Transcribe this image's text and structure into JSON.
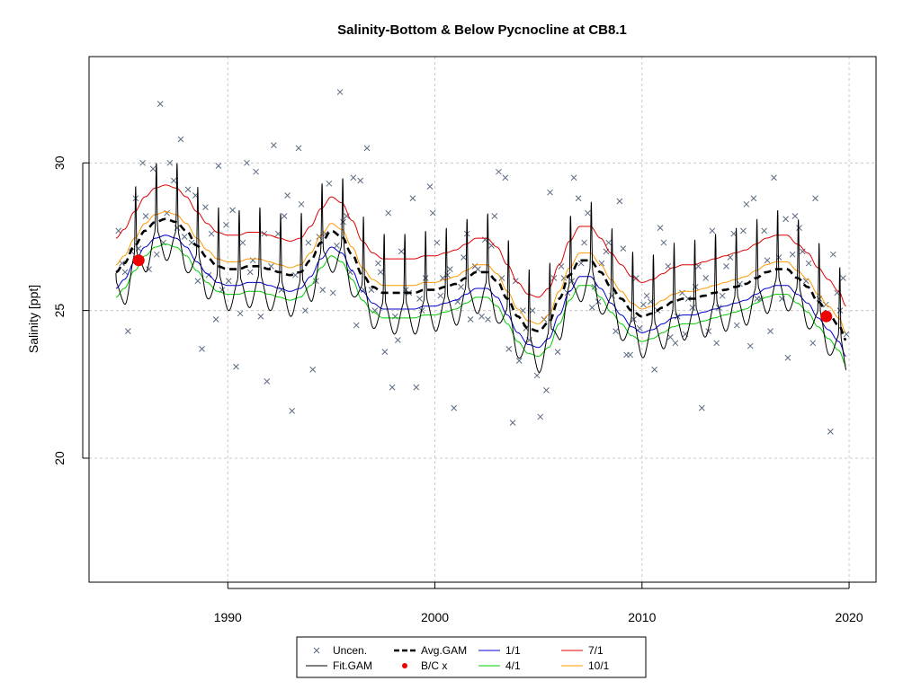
{
  "chart_data": {
    "type": "scatter",
    "title": "Salinity-Bottom & Below Pycnocline at CB8.1",
    "xlabel": "",
    "ylabel": "Salinity [ppt]",
    "xlim": [
      1983.3,
      2021.3
    ],
    "ylim": [
      15.8,
      33.6
    ],
    "x_ticks": [
      1990,
      2000,
      2010,
      2020
    ],
    "y_ticks": [
      20,
      25,
      30
    ],
    "grid": true,
    "legend_position": "bottom",
    "colors": {
      "points": "#5a6a80",
      "fit": "#000000",
      "avg": "#000000",
      "jan": "#0000cc",
      "apr": "#00cc00",
      "jul": "#dd0000",
      "oct": "#ff9900",
      "bc": "#ee0000"
    },
    "legend": [
      {
        "label": "Uncen.",
        "kind": "cross"
      },
      {
        "label": "Avg.GAM",
        "kind": "dash"
      },
      {
        "label": "1/1",
        "kind": "line",
        "color": "#0000cc"
      },
      {
        "label": "7/1",
        "kind": "line",
        "color": "#dd0000"
      },
      {
        "label": "Fit.GAM",
        "kind": "line",
        "color": "#000000"
      },
      {
        "label": "B/C x",
        "kind": "dot"
      },
      {
        "label": "4/1",
        "kind": "line",
        "color": "#00cc00"
      },
      {
        "label": "10/1",
        "kind": "line",
        "color": "#ff9900"
      }
    ],
    "avg_gam": {
      "x": [
        1984.6,
        1985.0,
        1985.5,
        1986.0,
        1986.5,
        1987.0,
        1987.5,
        1988.0,
        1988.5,
        1989.0,
        1989.5,
        1990.0,
        1990.5,
        1991.0,
        1991.5,
        1992.0,
        1992.5,
        1993.0,
        1993.5,
        1994.0,
        1994.5,
        1995.0,
        1995.5,
        1996.0,
        1996.5,
        1997.0,
        1997.5,
        1998.0,
        1998.5,
        1999.0,
        1999.5,
        2000.0,
        2000.5,
        2001.0,
        2001.5,
        2002.0,
        2002.5,
        2003.0,
        2003.5,
        2004.0,
        2004.5,
        2005.0,
        2005.5,
        2006.0,
        2006.5,
        2007.0,
        2007.5,
        2008.0,
        2008.5,
        2009.0,
        2009.5,
        2010.0,
        2010.5,
        2011.0,
        2011.5,
        2012.0,
        2012.5,
        2013.0,
        2013.5,
        2014.0,
        2014.5,
        2015.0,
        2015.5,
        2016.0,
        2016.5,
        2017.0,
        2017.5,
        2018.0,
        2018.5,
        2019.0,
        2019.5,
        2019.85
      ],
      "y": [
        26.3,
        26.6,
        27.2,
        27.7,
        28.0,
        28.1,
        28.0,
        27.7,
        27.2,
        26.8,
        26.5,
        26.4,
        26.4,
        26.5,
        26.5,
        26.4,
        26.3,
        26.2,
        26.3,
        26.7,
        27.3,
        27.7,
        27.5,
        26.9,
        26.2,
        25.8,
        25.6,
        25.6,
        25.6,
        25.6,
        25.7,
        25.7,
        25.8,
        25.9,
        26.1,
        26.3,
        26.3,
        26.0,
        25.4,
        24.8,
        24.4,
        24.3,
        24.6,
        25.4,
        26.2,
        26.7,
        26.7,
        26.3,
        25.8,
        25.4,
        25.0,
        24.8,
        24.9,
        25.1,
        25.3,
        25.4,
        25.4,
        25.5,
        25.6,
        25.7,
        25.8,
        25.9,
        26.1,
        26.3,
        26.4,
        26.4,
        26.1,
        25.8,
        25.3,
        24.9,
        24.5,
        24.0
      ]
    },
    "season_offsets": {
      "jan": -0.55,
      "apr": -0.85,
      "jul": 1.15,
      "oct": 0.25
    },
    "fit_gam_amplitude": 1.5,
    "bc_points": {
      "x": [
        1985.7,
        2018.9
      ],
      "y": [
        26.7,
        24.8
      ]
    },
    "observations": {
      "x": [
        1984.72,
        1984.89,
        1985.04,
        1985.18,
        1985.34,
        1985.55,
        1985.69,
        1985.89,
        1986.04,
        1986.19,
        1986.39,
        1986.57,
        1986.74,
        1986.89,
        1987.06,
        1987.2,
        1987.39,
        1987.56,
        1987.73,
        1987.91,
        1988.08,
        1988.25,
        1988.44,
        1988.55,
        1988.75,
        1988.92,
        1989.07,
        1989.21,
        1989.43,
        1989.55,
        1989.73,
        1989.92,
        1990.04,
        1990.23,
        1990.4,
        1990.6,
        1990.72,
        1990.92,
        1991.08,
        1991.21,
        1991.36,
        1991.59,
        1991.76,
        1991.89,
        1992.09,
        1992.22,
        1992.43,
        1992.59,
        1992.73,
        1992.88,
        1993.1,
        1993.26,
        1993.42,
        1993.55,
        1993.74,
        1993.89,
        1994.1,
        1994.26,
        1994.41,
        1994.58,
        1994.72,
        1994.89,
        1995.08,
        1995.26,
        1995.42,
        1995.57,
        1995.74,
        1995.91,
        1996.06,
        1996.21,
        1996.4,
        1996.56,
        1996.72,
        1996.93,
        1997.1,
        1997.26,
        1997.38,
        1997.58,
        1997.75,
        1997.94,
        1998.08,
        1998.21,
        1998.38,
        1998.6,
        1998.75,
        1998.93,
        1999.1,
        1999.26,
        1999.37,
        1999.55,
        1999.76,
        1999.9,
        2000.1,
        2000.27,
        2000.38,
        2000.61,
        2000.73,
        2000.92,
        2001.1,
        2001.26,
        2001.39,
        2001.55,
        2001.72,
        2001.93,
        2002.08,
        2002.26,
        2002.42,
        2002.56,
        2002.73,
        2002.88,
        2003.08,
        2003.23,
        2003.4,
        2003.57,
        2003.76,
        2003.9,
        2004.07,
        2004.25,
        2004.4,
        2004.56,
        2004.71,
        2004.93,
        2005.09,
        2005.27,
        2005.38,
        2005.56,
        2005.75,
        2005.93,
        2006.1,
        2006.23,
        2006.4,
        2006.61,
        2006.71,
        2006.93,
        2007.06,
        2007.21,
        2007.38,
        2007.59,
        2007.71,
        2007.89,
        2008.05,
        2008.27,
        2008.39,
        2008.56,
        2008.73,
        2008.92,
        2009.09,
        2009.25,
        2009.43,
        2009.6,
        2009.72,
        2009.89,
        2010.07,
        2010.23,
        2010.42,
        2010.6,
        2010.75,
        2010.88,
        2011.05,
        2011.26,
        2011.37,
        2011.61,
        2011.71,
        2011.94,
        2012.09,
        2012.23,
        2012.44,
        2012.58,
        2012.72,
        2012.89,
        2013.08,
        2013.21,
        2013.39,
        2013.6,
        2013.71,
        2013.88,
        2014.07,
        2014.26,
        2014.43,
        2014.58,
        2014.72,
        2014.89,
        2015.04,
        2015.23,
        2015.39,
        2015.56,
        2015.72,
        2015.9,
        2016.05,
        2016.2,
        2016.37,
        2016.61,
        2016.76,
        2016.94,
        2017.04,
        2017.27,
        2017.39,
        2017.59,
        2017.75,
        2017.92,
        2018.05,
        2018.25,
        2018.37,
        2018.56,
        2018.76,
        2018.88,
        2019.1,
        2019.23,
        2019.42,
        2019.56,
        2019.71,
        2019.87
      ],
      "y": [
        27.7,
        26.6,
        26.3,
        24.3,
        27.0,
        28.8,
        27.1,
        30.0,
        28.2,
        26.4,
        29.8,
        26.9,
        32.0,
        27.3,
        28.3,
        30.0,
        29.4,
        27.8,
        30.8,
        27.5,
        29.1,
        27.3,
        28.9,
        26.0,
        23.7,
        28.5,
        26.2,
        27.6,
        24.7,
        29.9,
        25.7,
        27.9,
        26.0,
        28.4,
        23.1,
        24.9,
        27.3,
        30.0,
        26.3,
        26.7,
        29.7,
        24.8,
        27.6,
        22.6,
        26.5,
        30.6,
        27.6,
        25.7,
        28.2,
        28.9,
        21.6,
        26.2,
        30.5,
        28.6,
        25.0,
        27.3,
        23.0,
        26.0,
        27.5,
        25.7,
        27.6,
        29.3,
        25.6,
        27.2,
        32.4,
        28.0,
        28.2,
        26.3,
        29.5,
        24.5,
        29.4,
        25.7,
        30.5,
        25.7,
        25.0,
        26.6,
        26.3,
        23.6,
        28.3,
        22.4,
        24.8,
        24.0,
        27.0,
        25.7,
        25.6,
        28.8,
        22.4,
        25.4,
        25.0,
        26.1,
        29.2,
        28.3,
        27.3,
        25.5,
        26.1,
        26.2,
        26.4,
        21.7,
        25.3,
        25.8,
        26.8,
        27.6,
        24.7,
        26.5,
        26.4,
        24.8,
        27.4,
        24.7,
        27.2,
        28.2,
        29.7,
        26.1,
        29.5,
        23.7,
        21.2,
        26.0,
        23.3,
        25.0,
        24.4,
        24.0,
        25.0,
        22.8,
        21.4,
        24.7,
        22.3,
        29.0,
        26.1,
        23.6,
        26.5,
        26.1,
        25.6,
        26.0,
        29.5,
        28.8,
        26.6,
        27.3,
        28.3,
        25.1,
        25.8,
        25.3,
        26.6,
        27.0,
        27.3,
        25.5,
        24.3,
        28.7,
        27.1,
        23.5,
        23.5,
        24.7,
        26.1,
        24.4,
        25.2,
        25.5,
        25.3,
        23.0,
        25.0,
        27.8,
        27.3,
        26.5,
        24.1,
        23.9,
        24.8,
        25.6,
        24.2,
        25.4,
        25.1,
        25.8,
        26.5,
        21.7,
        26.1,
        24.3,
        27.7,
        23.9,
        25.1,
        25.5,
        26.5,
        26.8,
        27.6,
        24.5,
        25.9,
        27.7,
        28.6,
        23.8,
        28.8,
        25.4,
        25.4,
        27.7,
        26.7,
        24.3,
        29.5,
        26.8,
        25.4,
        28.1,
        23.4,
        26.9,
        28.2,
        27.8,
        27.0,
        26.0,
        26.6,
        23.9,
        28.8,
        25.4,
        24.8,
        25.2,
        20.9,
        26.9,
        25.6,
        25.0,
        26.1,
        24.2
      ]
    }
  }
}
